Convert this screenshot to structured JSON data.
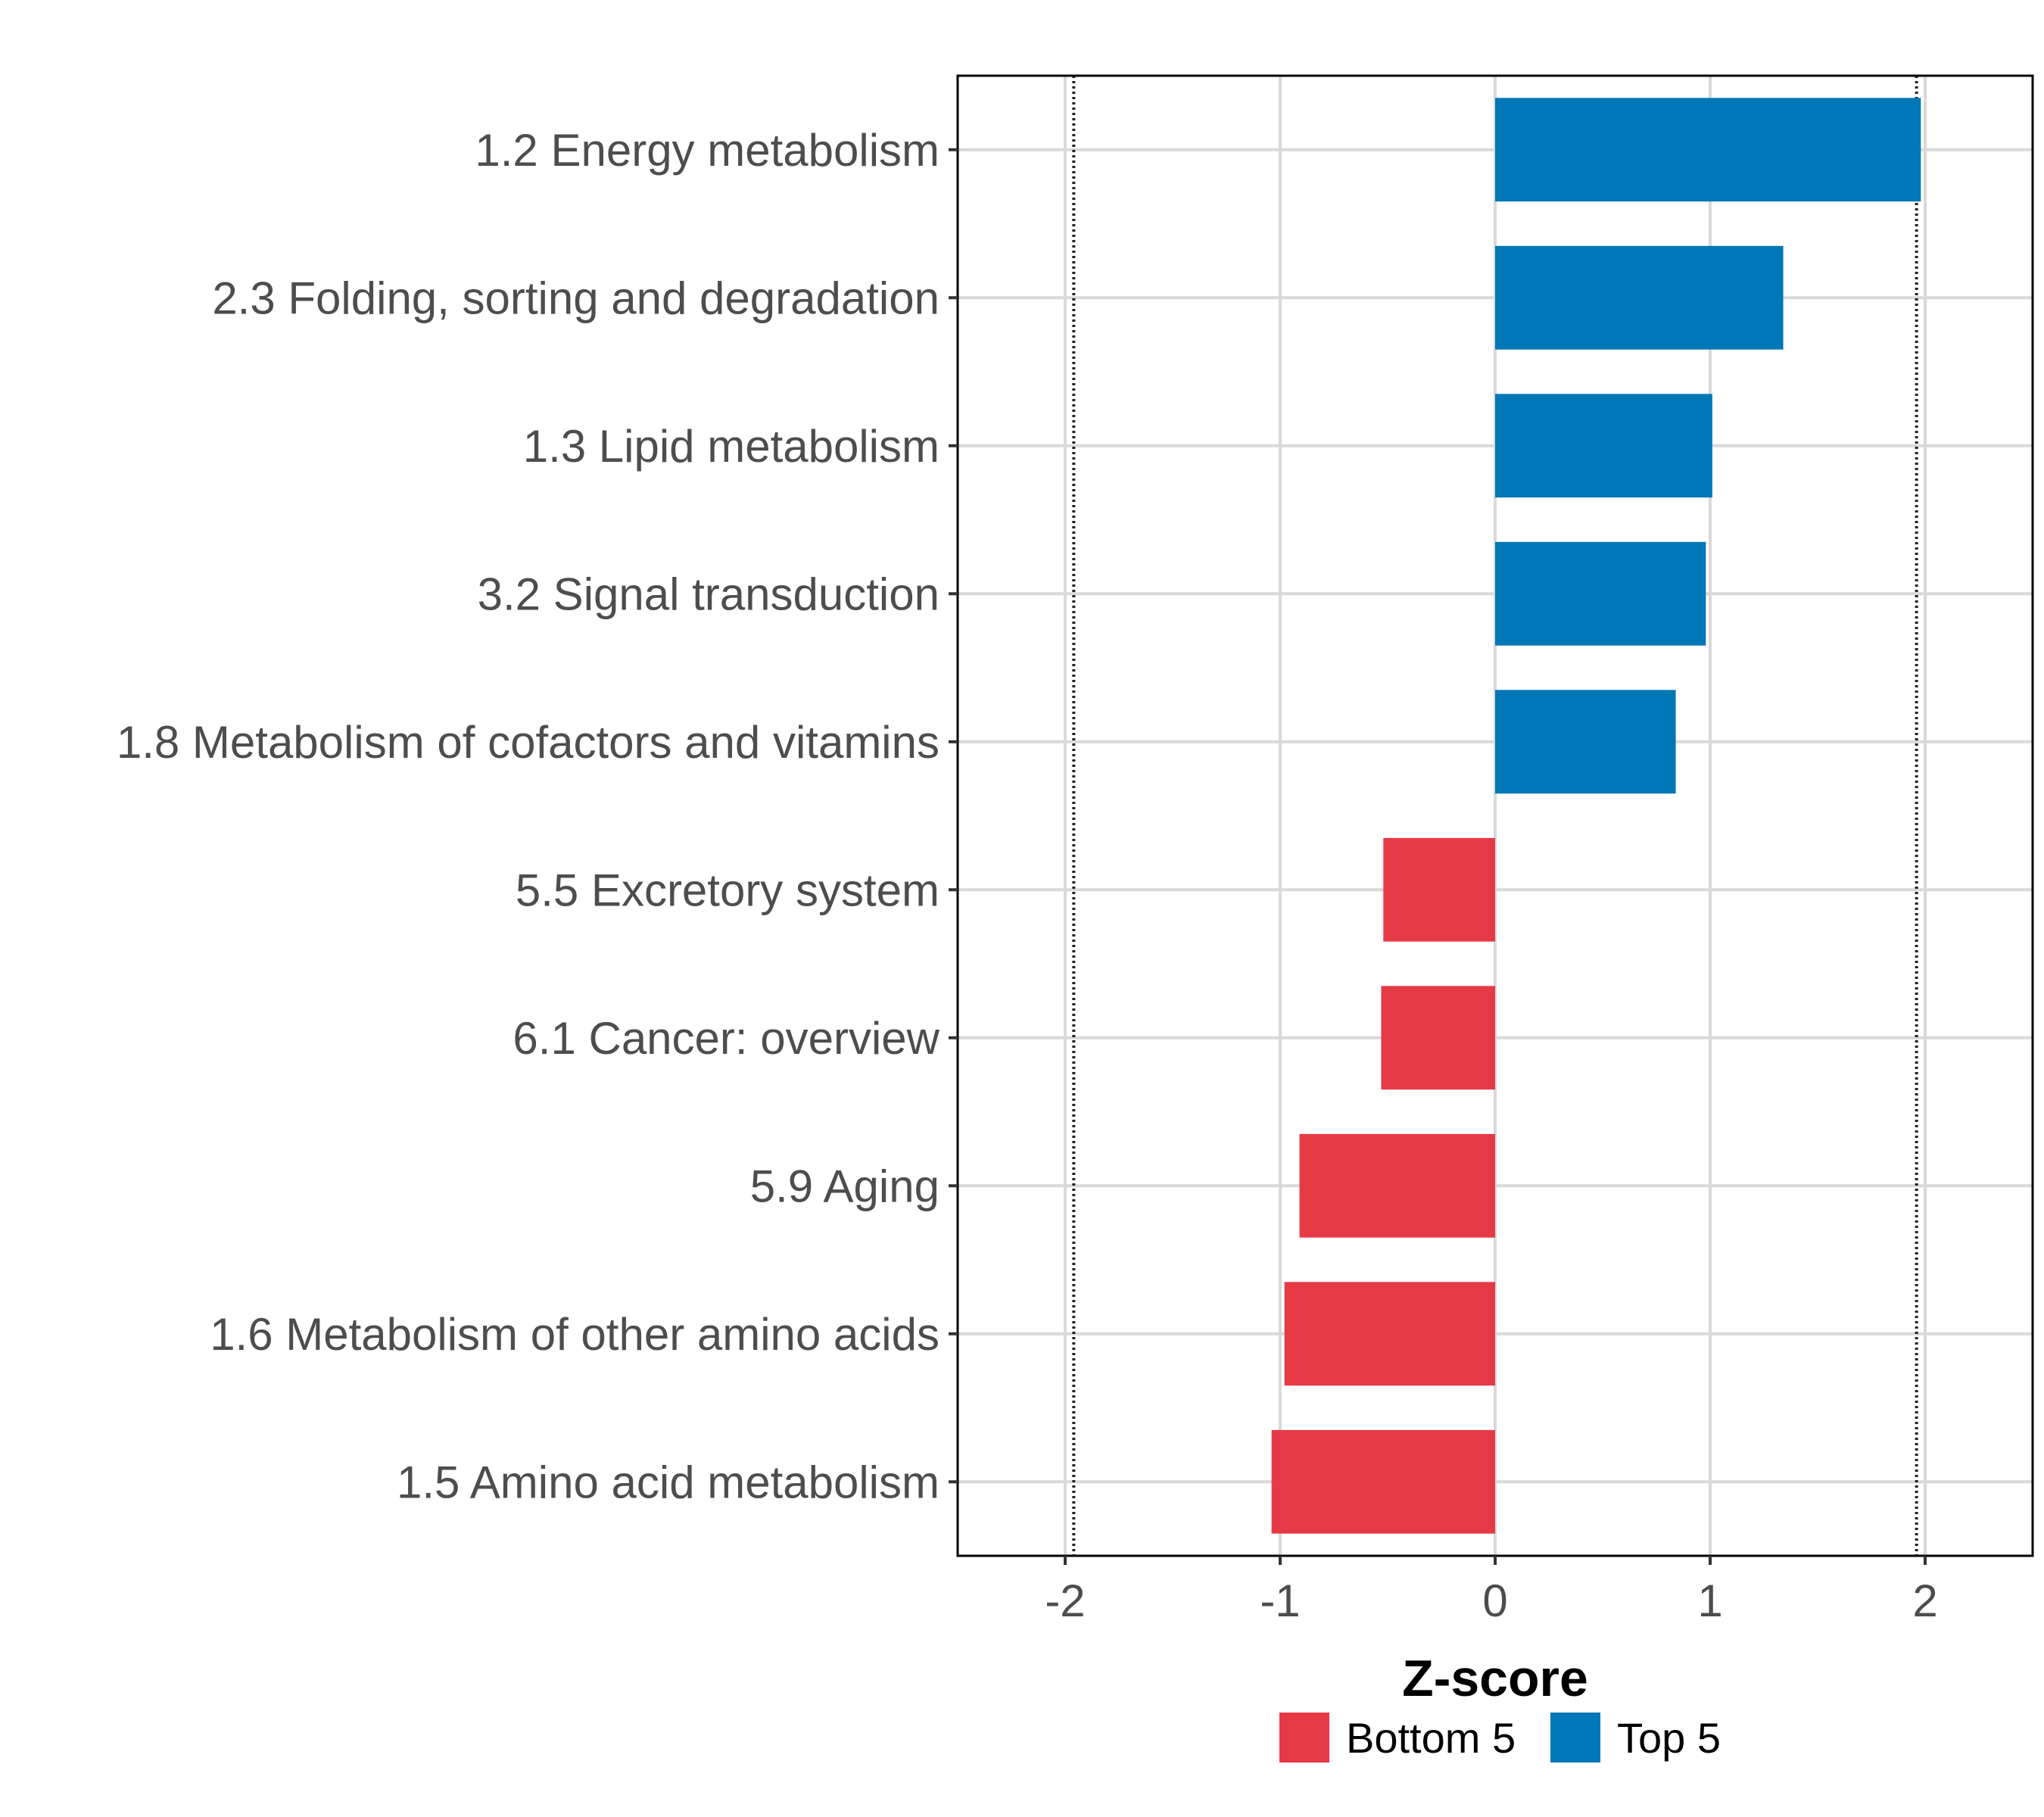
{
  "chart_data": {
    "type": "bar",
    "orientation": "horizontal",
    "xlabel": "Z-score",
    "xlim": [
      -2.5,
      2.5
    ],
    "xticks": [
      "-2",
      "-1",
      "0",
      "1",
      "2"
    ],
    "xtick_values": [
      -2,
      -1,
      0,
      1,
      2
    ],
    "reference_lines": [
      -1.96,
      1.96
    ],
    "reference_line_style": "dotted",
    "grid": true,
    "legend_position": "bottom",
    "categories": [
      "1.2 Energy metabolism",
      "2.3 Folding, sorting and degradation",
      "1.3 Lipid metabolism",
      "3.2 Signal transduction",
      "1.8 Metabolism of cofactors and vitamins",
      "5.5 Excretory system",
      "6.1 Cancer: overview",
      "5.9 Aging",
      "1.6 Metabolism of other amino acids",
      "1.5 Amino acid metabolism"
    ],
    "values": [
      1.98,
      1.34,
      1.01,
      0.98,
      0.84,
      -0.52,
      -0.53,
      -0.91,
      -0.98,
      -1.04
    ],
    "groups": [
      "Top 5",
      "Top 5",
      "Top 5",
      "Top 5",
      "Top 5",
      "Bottom 5",
      "Bottom 5",
      "Bottom 5",
      "Bottom 5",
      "Bottom 5"
    ],
    "legend": [
      {
        "name": "Bottom 5",
        "color": "#e63946"
      },
      {
        "name": "Top 5",
        "color": "#0077b6"
      }
    ]
  }
}
